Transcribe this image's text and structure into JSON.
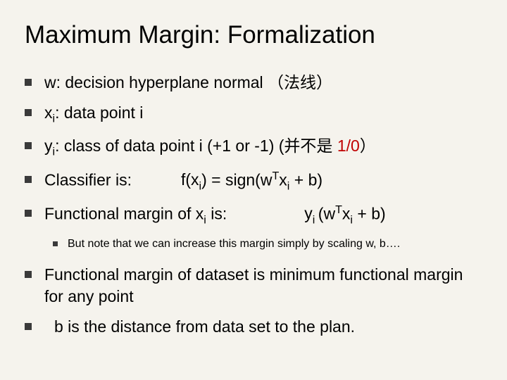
{
  "title": "Maximum Margin: Formalization",
  "bullets": [
    {
      "text_parts": [
        {
          "t": "w: decision hyperplane normal （法线）",
          "cls": ""
        }
      ]
    },
    {
      "text_parts": [
        {
          "t": "x",
          "cls": ""
        },
        {
          "t": "i",
          "cls": "",
          "sub": true
        },
        {
          "t": ": data point i",
          "cls": ""
        }
      ]
    },
    {
      "text_parts": [
        {
          "t": "y",
          "cls": ""
        },
        {
          "t": "i",
          "cls": "",
          "sub": true
        },
        {
          "t": ": class of data point i (+1 or -1) (并不是 ",
          "cls": ""
        },
        {
          "t": "1/0",
          "cls": "red"
        },
        {
          "t": "）",
          "cls": ""
        }
      ]
    },
    {
      "text_parts": [
        {
          "t": "Classifier is:",
          "cls": ""
        },
        {
          "t": "f(x",
          "cls": "formula-right"
        },
        {
          "t": "i",
          "cls": "",
          "sub": true
        },
        {
          "t": ") =  sign(w",
          "cls": ""
        },
        {
          "t": "T",
          "cls": "",
          "sup": true
        },
        {
          "t": "x",
          "cls": ""
        },
        {
          "t": "i",
          "cls": "",
          "sub": true
        },
        {
          "t": " + b)",
          "cls": ""
        }
      ]
    },
    {
      "text_parts": [
        {
          "t": "Functional margin of x",
          "cls": ""
        },
        {
          "t": "i",
          "cls": "",
          "sub": true
        },
        {
          "t": " is:",
          "cls": ""
        },
        {
          "t": "y",
          "cls": "formula-right2"
        },
        {
          "t": "i ",
          "cls": "",
          "sub": true
        },
        {
          "t": "(w",
          "cls": ""
        },
        {
          "t": "T",
          "cls": "",
          "sup": true
        },
        {
          "t": "x",
          "cls": ""
        },
        {
          "t": "i",
          "cls": "",
          "sub": true
        },
        {
          "t": " + b)",
          "cls": ""
        }
      ],
      "sub": [
        {
          "t": "But note that we can increase this margin simply by scaling w, b….",
          "cls": ""
        }
      ]
    },
    {
      "text_parts": [
        {
          "t": "Functional margin of dataset is minimum functional margin for any point",
          "cls": ""
        }
      ]
    },
    {
      "text_parts": [
        {
          "t": " b is the distance from data set to the plan.",
          "cls": "indent-b"
        }
      ]
    }
  ]
}
